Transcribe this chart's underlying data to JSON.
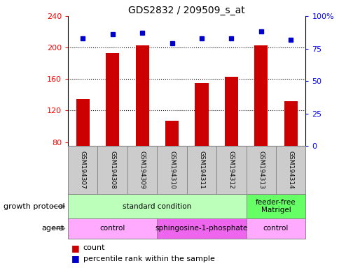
{
  "title": "GDS2832 / 209509_s_at",
  "samples": [
    "GSM194307",
    "GSM194308",
    "GSM194309",
    "GSM194310",
    "GSM194311",
    "GSM194312",
    "GSM194313",
    "GSM194314"
  ],
  "counts": [
    135,
    193,
    203,
    107,
    155,
    163,
    203,
    132
  ],
  "percentile_ranks": [
    83,
    86,
    87,
    79,
    83,
    83,
    88,
    82
  ],
  "ylim_left": [
    75,
    240
  ],
  "yticks_left": [
    80,
    120,
    160,
    200,
    240
  ],
  "ylim_right": [
    0,
    100
  ],
  "yticks_right": [
    0,
    25,
    50,
    75,
    100
  ],
  "bar_color": "#cc0000",
  "dot_color": "#0000cc",
  "bar_bottom": 75,
  "growth_protocol_groups": [
    {
      "label": "standard condition",
      "start": 0,
      "end": 6,
      "color": "#bbffbb"
    },
    {
      "label": "feeder-free\nMatrigel",
      "start": 6,
      "end": 8,
      "color": "#66ff66"
    }
  ],
  "agent_groups": [
    {
      "label": "control",
      "start": 0,
      "end": 3,
      "color": "#ffaaff"
    },
    {
      "label": "sphingosine-1-phosphate",
      "start": 3,
      "end": 6,
      "color": "#ee66ee"
    },
    {
      "label": "control",
      "start": 6,
      "end": 8,
      "color": "#ffaaff"
    }
  ],
  "legend_count_label": "count",
  "legend_pct_label": "percentile rank within the sample",
  "growth_protocol_label": "growth protocol",
  "agent_label": "agent",
  "sample_box_color": "#cccccc",
  "arrow_color": "#888888"
}
